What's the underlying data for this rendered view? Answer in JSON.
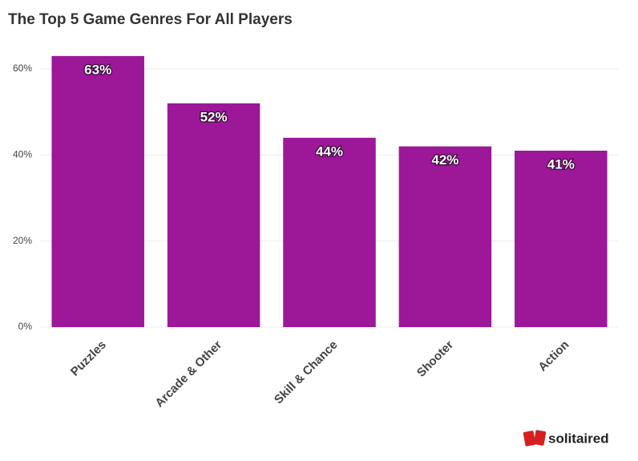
{
  "chart_data": {
    "type": "bar",
    "title": "The Top 5 Game Genres For All Players",
    "categories": [
      "Puzzles",
      "Arcade & Other",
      "Skill & Chance",
      "Shooter",
      "Action"
    ],
    "values": [
      63,
      52,
      44,
      42,
      41
    ],
    "value_labels": [
      "63%",
      "52%",
      "44%",
      "42%",
      "41%"
    ],
    "color": "#9c1898",
    "ylim": [
      0,
      64
    ],
    "yticks": [
      {
        "value": 0,
        "label": "0%"
      },
      {
        "value": 20,
        "label": "20%"
      },
      {
        "value": 40,
        "label": "40%"
      },
      {
        "value": 60,
        "label": "60%"
      }
    ],
    "grid": true
  },
  "logo": "solitaired"
}
